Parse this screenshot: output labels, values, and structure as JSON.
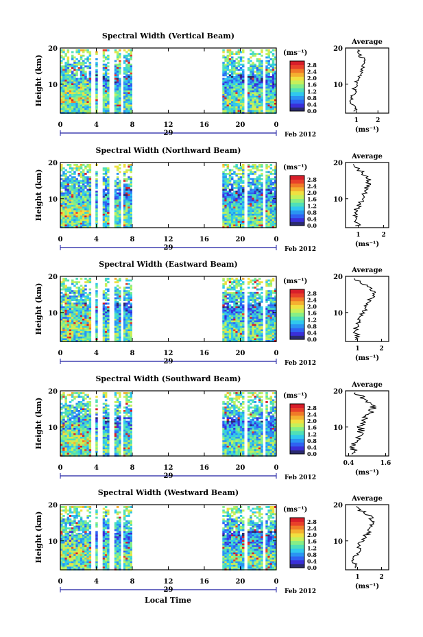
{
  "colorbar": {
    "unit": "(ms⁻¹)",
    "ticks": [
      "2.8",
      "2.4",
      "2.0",
      "1.6",
      "1.2",
      "0.8",
      "0.4",
      "0.0"
    ],
    "colors": [
      "#2a2a6e",
      "#3a2fd8",
      "#2f62f2",
      "#2a94f2",
      "#30c8ee",
      "#4fe0b8",
      "#86ee86",
      "#c6f05a",
      "#f0e040",
      "#f4b030",
      "#f07a28",
      "#e8402a",
      "#d81e2a"
    ]
  },
  "date_label": "Feb 2012",
  "day_label": "29",
  "x_axis_title": "Local Time",
  "x_ticks": [
    "0",
    "4",
    "8",
    "12",
    "16",
    "20",
    "0"
  ],
  "y_axis_title": "Height (km)",
  "y_ticks": [
    "20",
    "10"
  ],
  "profile_title": "Average",
  "profile_xlabel": "(ms⁻¹)",
  "panels": [
    {
      "title": "Spectral Width (Vertical Beam)",
      "profile_ticks": [
        "1",
        "2"
      ],
      "profile_xlim": [
        0.5,
        2.5
      ]
    },
    {
      "title": "Spectral Width (Northward Beam)",
      "profile_ticks": [
        "1",
        "2"
      ],
      "profile_xlim": [
        0.5,
        2.2
      ]
    },
    {
      "title": "Spectral Width (Eastward Beam)",
      "profile_ticks": [
        "1",
        "2"
      ],
      "profile_xlim": [
        0.5,
        2.3
      ]
    },
    {
      "title": "Spectral Width (Southward Beam)",
      "profile_ticks": [
        "0.4",
        "1.6"
      ],
      "profile_xlim": [
        0.3,
        1.7
      ]
    },
    {
      "title": "Spectral Width (Westward Beam)",
      "profile_ticks": [
        "1",
        "2"
      ],
      "profile_xlim": [
        0.5,
        2.3
      ]
    }
  ],
  "chart_data": {
    "type": "heatmap",
    "variable": "Spectral Width",
    "unit": "ms⁻¹",
    "clim": [
      0.0,
      2.8
    ],
    "x_range_hours": [
      0,
      24
    ],
    "y_range_km": [
      2,
      20
    ],
    "data_intervals_hours": [
      [
        0,
        3.2
      ],
      [
        3.9,
        4.1
      ],
      [
        4.7,
        5.2
      ],
      [
        6.0,
        6.6
      ],
      [
        7.0,
        7.8
      ],
      [
        18.0,
        20.3
      ],
      [
        20.8,
        22.3
      ],
      [
        22.8,
        24
      ]
    ],
    "panels": [
      {
        "beam": "Vertical",
        "average_profile": {
          "height_km": [
            3,
            5,
            7,
            9,
            11,
            13,
            15,
            17,
            19
          ],
          "width": [
            0.9,
            0.8,
            0.85,
            0.95,
            1.05,
            1.2,
            1.35,
            1.3,
            1.1
          ]
        }
      },
      {
        "beam": "Northward",
        "average_profile": {
          "height_km": [
            3,
            5,
            7,
            9,
            11,
            13,
            15,
            17,
            19
          ],
          "width": [
            1.0,
            0.85,
            0.9,
            1.1,
            1.25,
            1.3,
            1.45,
            1.2,
            0.8
          ]
        }
      },
      {
        "beam": "Eastward",
        "average_profile": {
          "height_km": [
            3,
            5,
            7,
            9,
            11,
            13,
            15,
            17,
            19
          ],
          "width": [
            1.0,
            0.9,
            1.0,
            1.15,
            1.3,
            1.4,
            1.7,
            1.5,
            0.9
          ]
        }
      },
      {
        "beam": "Southward",
        "average_profile": {
          "height_km": [
            3,
            5,
            7,
            9,
            11,
            13,
            15,
            17,
            19
          ],
          "width": [
            0.6,
            0.55,
            0.75,
            0.8,
            0.8,
            1.0,
            1.2,
            1.05,
            0.7
          ]
        }
      },
      {
        "beam": "Westward",
        "average_profile": {
          "height_km": [
            3,
            5,
            7,
            9,
            11,
            13,
            15,
            17,
            19
          ],
          "width": [
            0.9,
            0.8,
            1.0,
            1.1,
            1.3,
            1.5,
            1.6,
            1.5,
            1.0
          ]
        }
      }
    ]
  }
}
